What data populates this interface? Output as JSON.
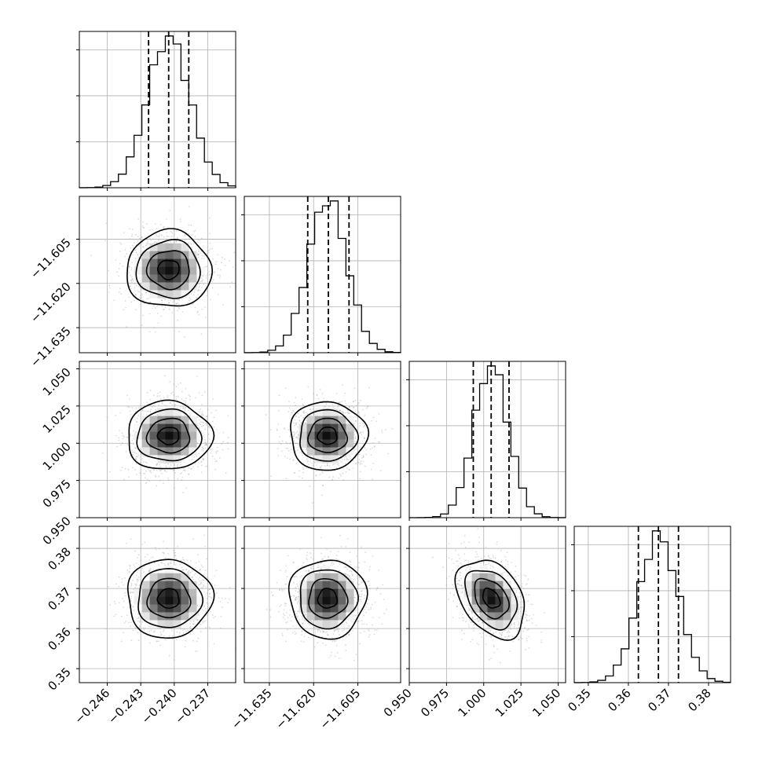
{
  "chart_data": {
    "type": "corner",
    "grid": true,
    "parameters": [
      {
        "range": [
          -0.2485,
          -0.2345
        ],
        "mean": -0.2405,
        "sd": 0.0019,
        "ticks": [
          -0.246,
          -0.243,
          -0.24,
          -0.237
        ],
        "tick_labels": [
          "−0.246",
          "−0.243",
          "−0.240",
          "−0.237"
        ],
        "quantiles": [
          -0.2423,
          -0.2405,
          -0.2387
        ]
      },
      {
        "range": [
          -11.6435,
          -11.5905
        ],
        "mean": -11.6153,
        "sd": 0.0065,
        "ticks": [
          -11.635,
          -11.62,
          -11.605
        ],
        "tick_labels": [
          "−11.635",
          "−11.620",
          "−11.605"
        ],
        "quantiles": [
          -11.622,
          -11.615,
          -11.608
        ]
      },
      {
        "range": [
          0.95,
          1.055
        ],
        "mean": 1.005,
        "sd": 0.0115,
        "ticks": [
          0.95,
          0.975,
          1.0,
          1.025,
          1.05
        ],
        "tick_labels": [
          "0.950",
          "0.975",
          "1.000",
          "1.025",
          "1.050"
        ],
        "quantiles": [
          0.993,
          1.005,
          1.017
        ]
      },
      {
        "range": [
          0.3465,
          0.3855
        ],
        "mean": 0.3675,
        "sd": 0.0049,
        "ticks": [
          0.35,
          0.36,
          0.37,
          0.38
        ],
        "tick_labels": [
          "0.35",
          "0.36",
          "0.37",
          "0.38"
        ],
        "quantiles": [
          0.3625,
          0.3675,
          0.3725
        ]
      }
    ],
    "correlations": [
      [
        0,
        1,
        0.0
      ],
      [
        0,
        2,
        0.0
      ],
      [
        0,
        3,
        0.0
      ],
      [
        1,
        2,
        0.0
      ],
      [
        1,
        3,
        0.0
      ],
      [
        2,
        3,
        -0.35
      ]
    ]
  }
}
